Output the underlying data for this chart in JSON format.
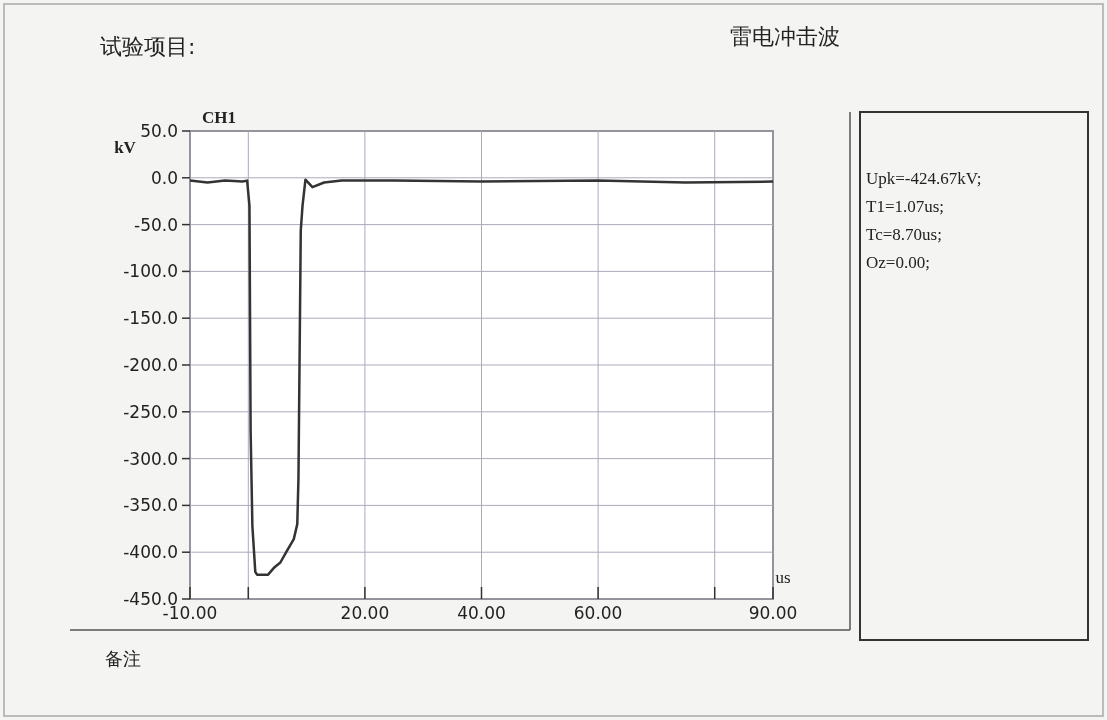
{
  "chart_data": {
    "type": "line",
    "title": "雷电冲击波",
    "xlabel": "us",
    "ylabel": "kV",
    "annotations": [
      "试验项目:",
      "Upk=-424.67kV;",
      "T1=1.07us;",
      "Tc=8.70us;",
      "Oz=0.00;",
      "备注"
    ],
    "xlim": [
      -10,
      90
    ],
    "ylim": [
      -450,
      50
    ],
    "xticks": [
      {
        "value": -10,
        "label": "-10.00"
      },
      {
        "value": 0,
        "label": null
      },
      {
        "value": 20,
        "label": "20.00"
      },
      {
        "value": 40,
        "label": "40.00"
      },
      {
        "value": 60,
        "label": "60.00"
      },
      {
        "value": 80,
        "label": null
      },
      {
        "value": 90,
        "label": "90.00"
      }
    ],
    "yticks": [
      {
        "value": 50,
        "label": "50.0"
      },
      {
        "value": 0,
        "label": "0.0"
      },
      {
        "value": -50,
        "label": "-50.0"
      },
      {
        "value": -100,
        "label": "-100.0"
      },
      {
        "value": -150,
        "label": "-150.0"
      },
      {
        "value": -200,
        "label": "-200.0"
      },
      {
        "value": -250,
        "label": "-250.0"
      },
      {
        "value": -300,
        "label": "-300.0"
      },
      {
        "value": -350,
        "label": "-350.0"
      },
      {
        "value": -400,
        "label": "-400.0"
      },
      {
        "value": -450,
        "label": "-450.0"
      }
    ],
    "grid": true,
    "series": [
      {
        "name": "CH1",
        "color": "#333333",
        "x": [
          -10,
          -7,
          -4,
          -1,
          -0.2,
          0.2,
          0.4,
          0.7,
          1.2,
          1.5,
          3.4,
          4.5,
          5.5,
          6.5,
          7.8,
          8.4,
          8.6,
          9.0,
          9.3,
          9.8,
          11,
          13,
          16,
          25,
          40,
          60,
          75,
          90
        ],
        "values": [
          -3,
          -5,
          -3,
          -4,
          -3,
          -30,
          -271,
          -372,
          -421,
          -424,
          -424,
          -416,
          -411,
          -400,
          -386,
          -370,
          -322,
          -56,
          -30,
          -2,
          -10,
          -5,
          -3,
          -3,
          -4,
          -3,
          -5,
          -4
        ]
      }
    ]
  }
}
